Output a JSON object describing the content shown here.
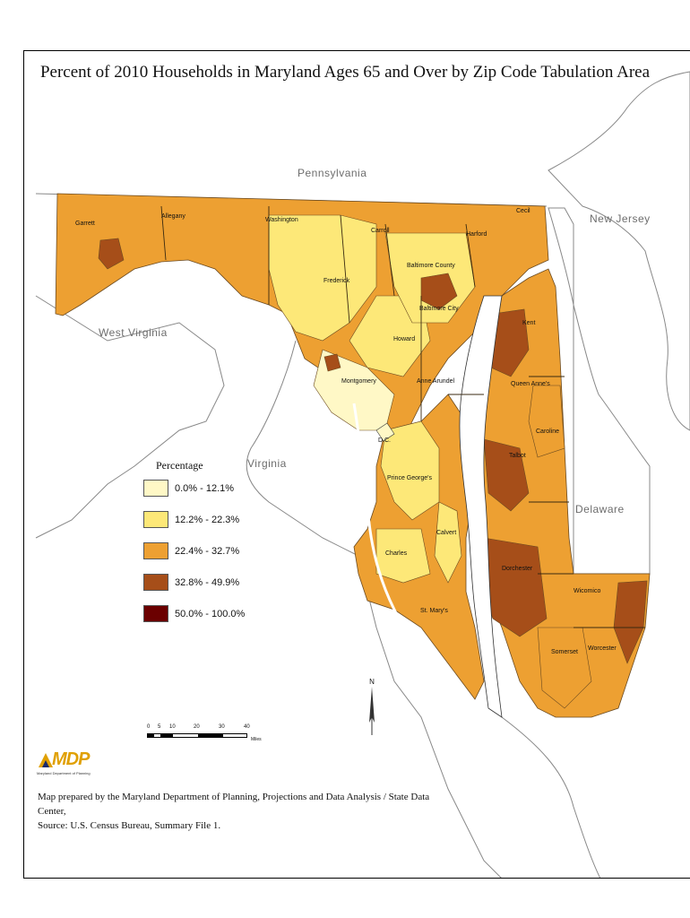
{
  "title": "Percent of 2010 Households in Maryland Ages 65 and Over by Zip Code Tabulation Area",
  "neighbors": {
    "pennsylvania": "Pennsylvania",
    "new_jersey": "New Jersey",
    "west_virginia": "West Virginia",
    "virginia": "Virginia",
    "delaware": "Delaware",
    "dc": "D.C."
  },
  "counties": {
    "garrett": "Garrett",
    "allegany": "Allegany",
    "washington": "Washington",
    "carroll": "Carroll",
    "harford": "Harford",
    "cecil": "Cecil",
    "baltimore_county": "Baltimore County",
    "frederick": "Frederick",
    "baltimore_city": "Baltimore City",
    "kent": "Kent",
    "howard": "Howard",
    "montgomery": "Montgomery",
    "anne_arundel": "Anne Arundel",
    "queen_annes": "Queen Anne's",
    "caroline": "Caroline",
    "talbot": "Talbot",
    "prince_georges": "Prince George's",
    "calvert": "Calvert",
    "charles": "Charles",
    "dorchester": "Dorchester",
    "wicomico": "Wicomico",
    "st_marys": "St. Mary's",
    "somerset": "Somerset",
    "worcester": "Worcester"
  },
  "legend": {
    "title": "Percentage",
    "items": [
      {
        "label": "0.0% - 12.1%",
        "color": "#fff8c6"
      },
      {
        "label": "12.2% - 22.3%",
        "color": "#fde878"
      },
      {
        "label": "22.4% - 32.7%",
        "color": "#eda032"
      },
      {
        "label": "32.8% - 49.9%",
        "color": "#a64e19"
      },
      {
        "label": "50.0% - 100.0%",
        "color": "#6b0000"
      }
    ]
  },
  "scale": {
    "ticks": [
      "0",
      "5",
      "10",
      "20",
      "30",
      "40"
    ],
    "unit": "Miles"
  },
  "north_label": "N",
  "logo": {
    "text": "MDP",
    "subtitle": "Maryland Department of Planning"
  },
  "credit": {
    "line1": "Map prepared by the Maryland Department of Planning, Projections and Data Analysis / State Data Center,",
    "line2": "Source: U.S. Census Bureau, Summary File 1."
  }
}
